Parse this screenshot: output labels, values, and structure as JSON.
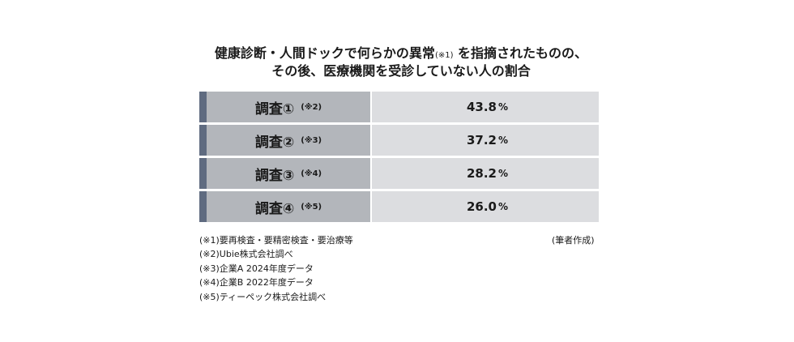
{
  "title": {
    "line1_main": "健康診断・人間ドックで何らかの異常",
    "line1_note": "(※1)",
    "line1_rest": " を指摘されたものの、",
    "line2": "その後、医療機関を受診していない人の割合"
  },
  "rows": [
    {
      "label": "調査①",
      "note": "(※2)",
      "value": "43.8",
      "unit": "%"
    },
    {
      "label": "調査②",
      "note": "(※3)",
      "value": "37.2",
      "unit": "%"
    },
    {
      "label": "調査③",
      "note": "(※4)",
      "value": "28.2",
      "unit": "%"
    },
    {
      "label": "調査④",
      "note": "(※5)",
      "value": "26.0",
      "unit": "%"
    }
  ],
  "footnotes": [
    "(※1)要再検査・要精密検査・要治療等",
    "(※2)Ubie株式会社調べ",
    "(※3)企業A 2024年度データ",
    "(※4)企業B 2022年度データ",
    "(※5)ティーペック株式会社調べ"
  ],
  "author_note": "(筆者作成)",
  "colors": {
    "marker": "#5f6b80",
    "label_bg": "#b3b6bb",
    "value_bg": "#dcdde0"
  }
}
